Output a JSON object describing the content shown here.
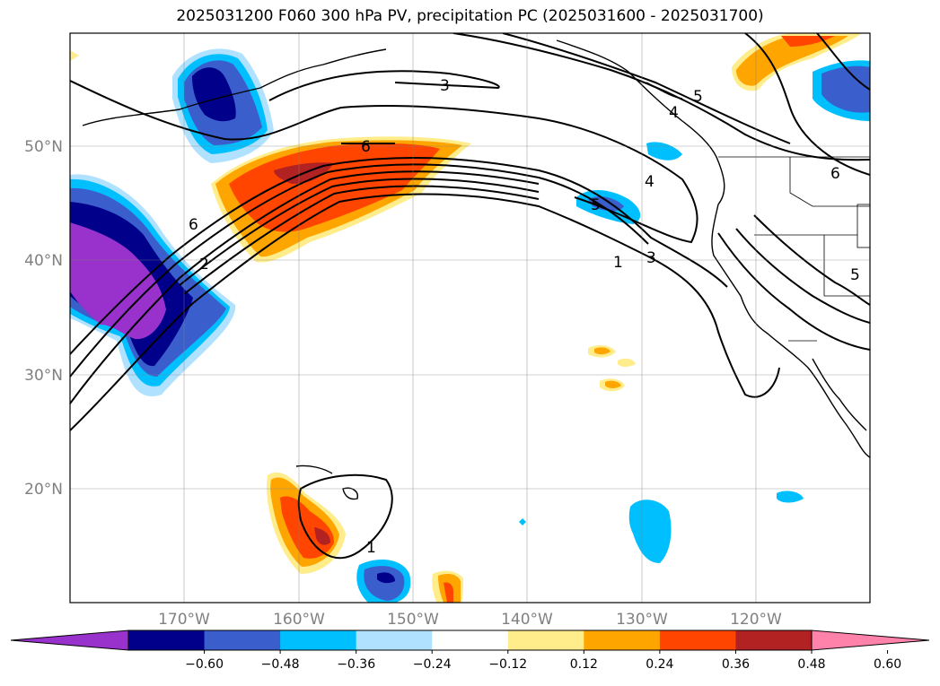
{
  "title": "2025031200 F060 300 hPa PV, precipitation PC (2025031600 - 2025031700)",
  "map": {
    "lon_labels": [
      "170°W",
      "160°W",
      "150°W",
      "140°W",
      "130°W",
      "120°W"
    ],
    "lat_labels": [
      "20°N",
      "30°N",
      "40°N",
      "50°N"
    ],
    "grid": true
  },
  "contours": {
    "quantity": "300 hPa PV",
    "labels": [
      "3",
      "6",
      "5",
      "4",
      "6",
      "4",
      "5",
      "6",
      "2",
      "1",
      "3",
      "5",
      "1"
    ]
  },
  "colorbar": {
    "ticks": [
      "−0.60",
      "−0.48",
      "−0.36",
      "−0.24",
      "−0.12",
      "0.12",
      "0.24",
      "0.36",
      "0.48",
      "0.60"
    ],
    "colors": [
      "#9932CC",
      "#00008B",
      "#3A5FCD",
      "#00BFFF",
      "#B0E2FF",
      "#FFFFFF",
      "#FFEC8B",
      "#FFA500",
      "#FF4500",
      "#B22222",
      "#FF82AB"
    ],
    "extend": "both"
  }
}
